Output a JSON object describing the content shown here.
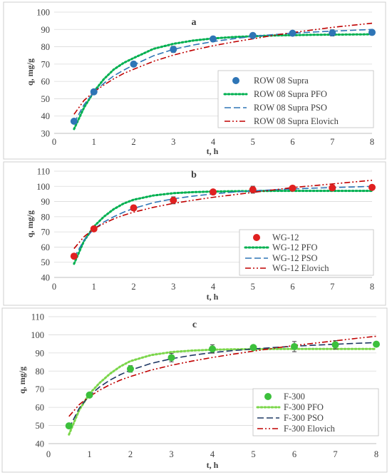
{
  "chart_data": [
    {
      "type": "scatter",
      "panel": "a",
      "xlabel": "t, h",
      "ylabel": "q, mg/g",
      "xlim": [
        0,
        8
      ],
      "ylim": [
        30,
        100
      ],
      "xticks": [
        0,
        1,
        2,
        3,
        4,
        5,
        6,
        7,
        8
      ],
      "yticks": [
        30,
        40,
        50,
        60,
        70,
        80,
        90,
        100
      ],
      "grid": "horizontal",
      "legend_position": "bottom-right",
      "colors": {
        "marker": "#2e75b6",
        "pfo": "#00b050",
        "pso": "#2e75b6",
        "elovich": "#c00000"
      },
      "series": [
        {
          "name": "ROW 08 Supra",
          "kind": "markers",
          "marker": "circle",
          "x": [
            0.5,
            1,
            2,
            3,
            4,
            5,
            6,
            7,
            8
          ],
          "y": [
            37.0,
            54.0,
            70.0,
            78.5,
            84.5,
            86.5,
            87.8,
            88.0,
            88.3
          ],
          "err": [
            1.2,
            1.0,
            1.5,
            1.8,
            1.5,
            1.2,
            1.2,
            1.8,
            1.2
          ]
        },
        {
          "name": "ROW 08 Supra PFO",
          "kind": "line",
          "dash": "dotted",
          "x": [
            0.5,
            0.75,
            1,
            1.25,
            1.5,
            1.75,
            2,
            2.5,
            3,
            3.5,
            4,
            4.5,
            5,
            5.5,
            6,
            6.5,
            7,
            7.5,
            8
          ],
          "y": [
            32.5,
            44.8,
            54.1,
            61.3,
            66.9,
            70.7,
            73.5,
            78.8,
            81.7,
            83.6,
            84.8,
            85.6,
            86.1,
            86.5,
            86.7,
            86.9,
            87.0,
            87.1,
            87.2
          ]
        },
        {
          "name": "ROW 08 Supra PSO",
          "kind": "line",
          "dash": "dashed",
          "x": [
            0.5,
            0.75,
            1,
            1.25,
            1.5,
            1.75,
            2,
            2.5,
            3,
            3.5,
            4,
            4.5,
            5,
            5.5,
            6,
            6.5,
            7,
            7.5,
            8
          ],
          "y": [
            36.0,
            46.5,
            53.8,
            58.9,
            63.2,
            66.5,
            69.5,
            74.8,
            78.5,
            81.0,
            83.0,
            84.6,
            86.0,
            87.0,
            87.8,
            88.5,
            89.0,
            89.5,
            90.0
          ]
        },
        {
          "name": "ROW 08 Supra Elovich",
          "kind": "line",
          "dash": "dash-dot-dot",
          "x": [
            0.5,
            0.75,
            1,
            1.25,
            1.5,
            1.75,
            2,
            2.5,
            3,
            3.5,
            4,
            4.5,
            5,
            5.5,
            6,
            6.5,
            7,
            7.5,
            8
          ],
          "y": [
            41.0,
            49.0,
            54.0,
            57.9,
            61.5,
            64.6,
            67.0,
            71.6,
            75.2,
            78.1,
            80.6,
            82.7,
            84.6,
            86.5,
            88.2,
            89.7,
            91.2,
            92.4,
            93.6
          ]
        }
      ]
    },
    {
      "type": "scatter",
      "panel": "b",
      "xlabel": "t, h",
      "ylabel": "q, mg/g",
      "xlim": [
        0,
        8
      ],
      "ylim": [
        40,
        110
      ],
      "xticks": [
        0,
        1,
        2,
        3,
        4,
        5,
        6,
        7,
        8
      ],
      "yticks": [
        40,
        50,
        60,
        70,
        80,
        90,
        100,
        110
      ],
      "grid": "horizontal",
      "legend_position": "bottom-right",
      "colors": {
        "marker": "#e02020",
        "pfo": "#00b050",
        "pso": "#2e75b6",
        "elovich": "#c00000"
      },
      "series": [
        {
          "name": "WG-12",
          "kind": "markers",
          "marker": "circle",
          "x": [
            0.5,
            1,
            2,
            3,
            4,
            5,
            6,
            7,
            8
          ],
          "y": [
            54.0,
            72.0,
            85.8,
            90.8,
            96.3,
            97.8,
            98.8,
            99.0,
            99.3
          ],
          "err": [
            1.5,
            1.5,
            1.8,
            2.3,
            1.2,
            2.3,
            1.2,
            1.8,
            1.5
          ]
        },
        {
          "name": "WG-12 PFO",
          "kind": "line",
          "dash": "dotted",
          "x": [
            0.5,
            0.75,
            1,
            1.25,
            1.5,
            1.75,
            2,
            2.5,
            3,
            3.5,
            4,
            4.5,
            5,
            5.5,
            6,
            6.5,
            7,
            7.5,
            8
          ],
          "y": [
            49.0,
            64.0,
            73.5,
            80.0,
            85.0,
            88.7,
            91.2,
            94.0,
            95.5,
            96.2,
            96.6,
            96.8,
            96.9,
            97.0,
            97.0,
            97.0,
            97.0,
            97.0,
            97.0
          ]
        },
        {
          "name": "WG-12 PSO",
          "kind": "line",
          "dash": "dashed",
          "x": [
            0.5,
            0.75,
            1,
            1.25,
            1.5,
            1.75,
            2,
            2.5,
            3,
            3.5,
            4,
            4.5,
            5,
            5.5,
            6,
            6.5,
            7,
            7.5,
            8
          ],
          "y": [
            53.0,
            64.5,
            72.0,
            76.5,
            80.0,
            83.0,
            85.5,
            89.3,
            91.8,
            93.6,
            95.0,
            96.2,
            97.0,
            97.7,
            98.3,
            98.8,
            99.2,
            99.6,
            100.0
          ]
        },
        {
          "name": "WG-12 Elovich",
          "kind": "line",
          "dash": "dash-dot-dot",
          "x": [
            0.5,
            0.75,
            1,
            1.25,
            1.5,
            1.75,
            2,
            2.5,
            3,
            3.5,
            4,
            4.5,
            5,
            5.5,
            6,
            6.5,
            7,
            7.5,
            8
          ],
          "y": [
            59.0,
            66.8,
            72.0,
            75.5,
            78.6,
            81.0,
            83.0,
            86.2,
            88.8,
            90.9,
            92.8,
            94.4,
            96.0,
            97.6,
            99.2,
            100.4,
            101.6,
            102.8,
            104.0
          ]
        }
      ]
    },
    {
      "type": "scatter",
      "panel": "c",
      "xlabel": "t, h",
      "ylabel": "q, mg/g",
      "xlim": [
        0,
        8
      ],
      "ylim": [
        40,
        110
      ],
      "xticks": [
        0,
        1,
        2,
        3,
        4,
        5,
        6,
        7,
        8
      ],
      "yticks": [
        40,
        50,
        60,
        70,
        80,
        90,
        100,
        110
      ],
      "grid": "horizontal",
      "legend_position": "bottom-right",
      "colors": {
        "marker": "#3cc03c",
        "pfo": "#7bd64a",
        "pso": "#1f3864",
        "elovich": "#c00000"
      },
      "series": [
        {
          "name": "F-300",
          "kind": "markers",
          "marker": "circle",
          "x": [
            0.5,
            1,
            2,
            3,
            4,
            5,
            6,
            7,
            8
          ],
          "y": [
            49.8,
            66.8,
            81.2,
            87.4,
            92.2,
            93.0,
            93.5,
            94.5,
            94.8
          ],
          "err": [
            1.2,
            1.2,
            1.8,
            2.3,
            2.3,
            1.2,
            2.8,
            2.3,
            1.2
          ]
        },
        {
          "name": "F-300 PFO",
          "kind": "line",
          "dash": "dotted",
          "x": [
            0.5,
            0.75,
            1,
            1.25,
            1.5,
            1.75,
            2,
            2.5,
            3,
            3.5,
            4,
            4.5,
            5,
            5.5,
            6,
            6.5,
            7,
            7.5,
            8
          ],
          "y": [
            45.0,
            58.5,
            67.5,
            73.5,
            78.5,
            82.5,
            85.5,
            88.8,
            90.5,
            91.3,
            91.8,
            92.0,
            92.1,
            92.2,
            92.2,
            92.2,
            92.2,
            92.2,
            92.2
          ]
        },
        {
          "name": "F-300 PSO",
          "kind": "line",
          "dash": "dashed",
          "x": [
            0.5,
            0.75,
            1,
            1.25,
            1.5,
            1.75,
            2,
            2.5,
            3,
            3.5,
            4,
            4.5,
            5,
            5.5,
            6,
            6.5,
            7,
            7.5,
            8
          ],
          "y": [
            48.5,
            59.5,
            66.5,
            71.3,
            75.0,
            78.0,
            80.5,
            84.2,
            86.8,
            88.7,
            90.2,
            91.3,
            92.2,
            93.0,
            93.7,
            94.3,
            94.8,
            95.3,
            95.7
          ]
        },
        {
          "name": "F-300 Elovich",
          "kind": "line",
          "dash": "dash-dot-dot",
          "x": [
            0.5,
            0.75,
            1,
            1.25,
            1.5,
            1.75,
            2,
            2.5,
            3,
            3.5,
            4,
            4.5,
            5,
            5.5,
            6,
            6.5,
            7,
            7.5,
            8
          ],
          "y": [
            55.0,
            61.5,
            66.0,
            69.5,
            72.5,
            75.0,
            77.0,
            80.5,
            83.2,
            85.5,
            87.5,
            89.3,
            91.0,
            92.6,
            94.1,
            95.4,
            96.7,
            98.0,
            99.2
          ]
        }
      ]
    }
  ]
}
